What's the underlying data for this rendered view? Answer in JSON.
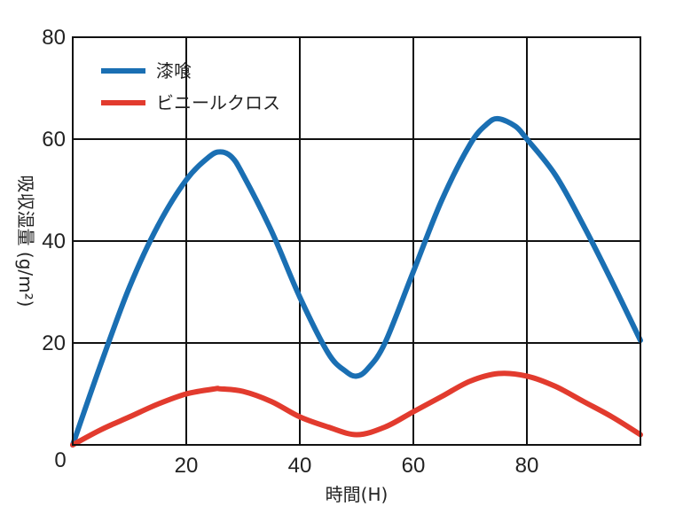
{
  "chart_data": {
    "type": "line",
    "xlabel": "時間(H)",
    "ylabel": "吸収湿量 (g/m²)",
    "xlim": [
      0,
      100
    ],
    "ylim": [
      0,
      80
    ],
    "x_ticks": [
      0,
      20,
      40,
      60,
      80
    ],
    "y_ticks": [
      0,
      20,
      40,
      60,
      80
    ],
    "grid": true,
    "legend_position": "top-left",
    "series": [
      {
        "name": "漆喰",
        "color": "#1a6fb3",
        "x": [
          0,
          5,
          10,
          15,
          20,
          24,
          26,
          28,
          30,
          35,
          40,
          45,
          48,
          50,
          52,
          55,
          60,
          65,
          70,
          73,
          75,
          78,
          80,
          85,
          90,
          95,
          100
        ],
        "y": [
          0,
          16,
          31,
          43,
          52,
          56.5,
          57.5,
          56.5,
          53,
          42,
          29,
          18,
          14.5,
          13.5,
          15,
          20,
          34,
          48,
          59,
          63,
          64,
          62.5,
          60,
          53,
          43,
          32,
          20.5
        ]
      },
      {
        "name": "ビニールクロス",
        "color": "#e23b2e",
        "x": [
          0,
          5,
          10,
          15,
          20,
          25,
          26,
          30,
          35,
          40,
          45,
          50,
          55,
          60,
          65,
          70,
          75,
          80,
          85,
          90,
          95,
          100
        ],
        "y": [
          0,
          3,
          5.5,
          8,
          10,
          11,
          11,
          10.5,
          8.5,
          5.5,
          3.5,
          2,
          3.5,
          6.5,
          9.5,
          12.5,
          14,
          13.5,
          11.5,
          8.5,
          5.5,
          2
        ]
      }
    ]
  }
}
